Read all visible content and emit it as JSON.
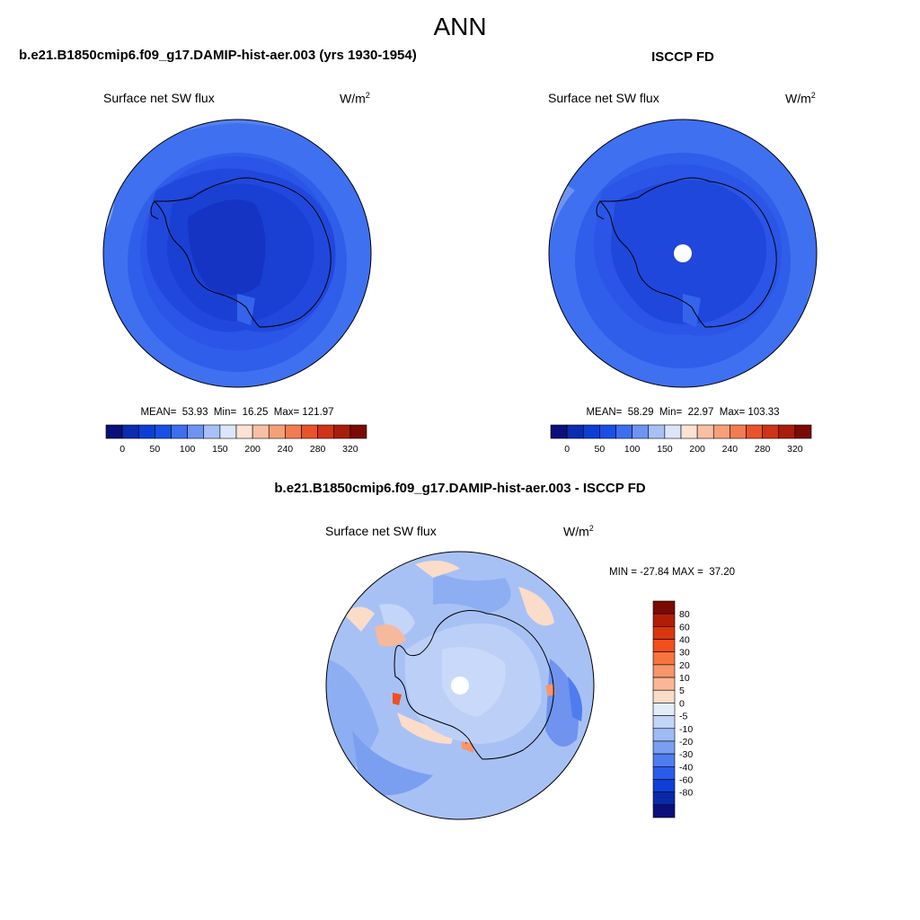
{
  "title": "ANN",
  "panels": [
    {
      "case_title": "b.e21.B1850cmip6.f09_g17.DAMIP-hist-aer.003 (yrs 1930-1954)",
      "variable": "Surface net SW flux",
      "units": "W/m",
      "units_exp": "2",
      "stats": "MEAN=  53.93  Min=  16.25  Max= 121.97"
    },
    {
      "case_title": "ISCCP FD",
      "variable": "Surface net SW flux",
      "units": "W/m",
      "units_exp": "2",
      "stats": "MEAN=  58.29  Min=  22.97  Max= 103.33"
    }
  ],
  "diff": {
    "title": "b.e21.B1850cmip6.f09_g17.DAMIP-hist-aer.003 - ISCCP FD",
    "variable": "Surface net SW flux",
    "units": "W/m",
    "units_exp": "2",
    "stats": "MIN = -27.84 MAX =  37.20"
  },
  "chart_data": [
    {
      "type": "heatmap",
      "projection": "south-polar-stereographic",
      "title": "b.e21.B1850cmip6.f09_g17.DAMIP-hist-aer.003 (yrs 1930-1954)",
      "variable": "Surface net SW flux",
      "units": "W/m2",
      "mean": 53.93,
      "min": 16.25,
      "max": 121.97,
      "colorbar_tick_labels": [
        "0",
        "50",
        "100",
        "150",
        "200",
        "240",
        "280",
        "320"
      ],
      "colorbar_colors": [
        "#0b0f7a",
        "#0a2cb0",
        "#0d3ed4",
        "#1a4fe6",
        "#3d6ef0",
        "#6f93f3",
        "#a9c0f7",
        "#dbe6fb",
        "#fbe2d4",
        "#f7c0a5",
        "#f5a07a",
        "#f27c50",
        "#e9532b",
        "#cf3415",
        "#a81d0c",
        "#7a0a03"
      ],
      "colorbar_orientation": "horizontal"
    },
    {
      "type": "heatmap",
      "projection": "south-polar-stereographic",
      "title": "ISCCP FD",
      "variable": "Surface net SW flux",
      "units": "W/m2",
      "mean": 58.29,
      "min": 22.97,
      "max": 103.33,
      "colorbar_tick_labels": [
        "0",
        "50",
        "100",
        "150",
        "200",
        "240",
        "280",
        "320"
      ],
      "colorbar_colors": [
        "#0b0f7a",
        "#0a2cb0",
        "#0d3ed4",
        "#1a4fe6",
        "#3d6ef0",
        "#6f93f3",
        "#a9c0f7",
        "#dbe6fb",
        "#fbe2d4",
        "#f7c0a5",
        "#f5a07a",
        "#f27c50",
        "#e9532b",
        "#cf3415",
        "#a81d0c",
        "#7a0a03"
      ],
      "colorbar_orientation": "horizontal"
    },
    {
      "type": "heatmap",
      "projection": "south-polar-stereographic",
      "title": "b.e21.B1850cmip6.f09_g17.DAMIP-hist-aer.003 - ISCCP FD",
      "variable": "Surface net SW flux",
      "units": "W/m2",
      "min": -27.84,
      "max": 37.2,
      "colorbar_tick_labels": [
        "80",
        "60",
        "40",
        "30",
        "20",
        "10",
        "5",
        "0",
        "-5",
        "-10",
        "-20",
        "-30",
        "-40",
        "-60",
        "-80"
      ],
      "colorbar_colors": [
        "#7a0a03",
        "#b21d0a",
        "#d9360f",
        "#f24e1e",
        "#f77440",
        "#f7966a",
        "#f8b896",
        "#fbdcc8",
        "#e3ecfb",
        "#c3d5f8",
        "#9fbbf4",
        "#7a9ff1",
        "#4f7def",
        "#2a5cec",
        "#0d3fd6",
        "#0a28a8",
        "#0b0f7a"
      ],
      "colorbar_orientation": "vertical"
    }
  ],
  "colors": {
    "ocean_blue": "#3e6ff0",
    "land_blue": "#1d45db",
    "interior_blue": "#1335c2",
    "diff_base": "#a9c2f5",
    "diff_positive": "#f6b99b",
    "diff_negative": "#6f95ee"
  }
}
